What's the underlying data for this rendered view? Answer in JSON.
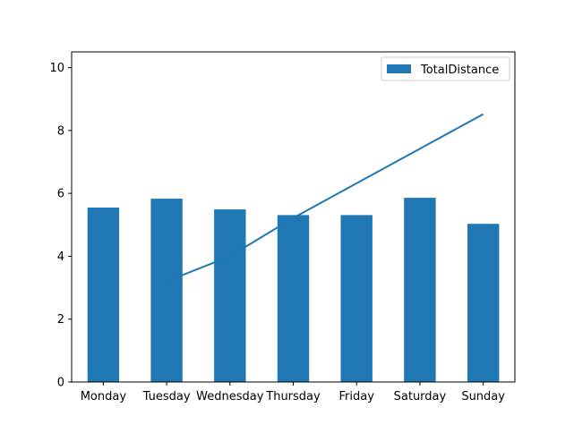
{
  "chart_data": {
    "type": "bar",
    "categories": [
      "Monday",
      "Tuesday",
      "Wednesday",
      "Thursday",
      "Friday",
      "Saturday",
      "Sunday"
    ],
    "series": [
      {
        "name": "TotalDistance",
        "type": "bar",
        "values": [
          5.55,
          5.83,
          5.49,
          5.31,
          5.31,
          5.86,
          5.03
        ],
        "color": "#1f77b4"
      },
      {
        "type": "line",
        "values": [
          null,
          3.2,
          4.0,
          5.22,
          6.32,
          7.42,
          8.52
        ],
        "color": "#1f77b4"
      }
    ],
    "title": "",
    "xlabel": "",
    "ylabel": "",
    "ylim": [
      0,
      10.5
    ],
    "yticks": [
      "0",
      "2",
      "4",
      "6",
      "8",
      "10"
    ],
    "grid": false,
    "legend": {
      "position": "top-right",
      "entries": [
        "TotalDistance"
      ]
    }
  }
}
